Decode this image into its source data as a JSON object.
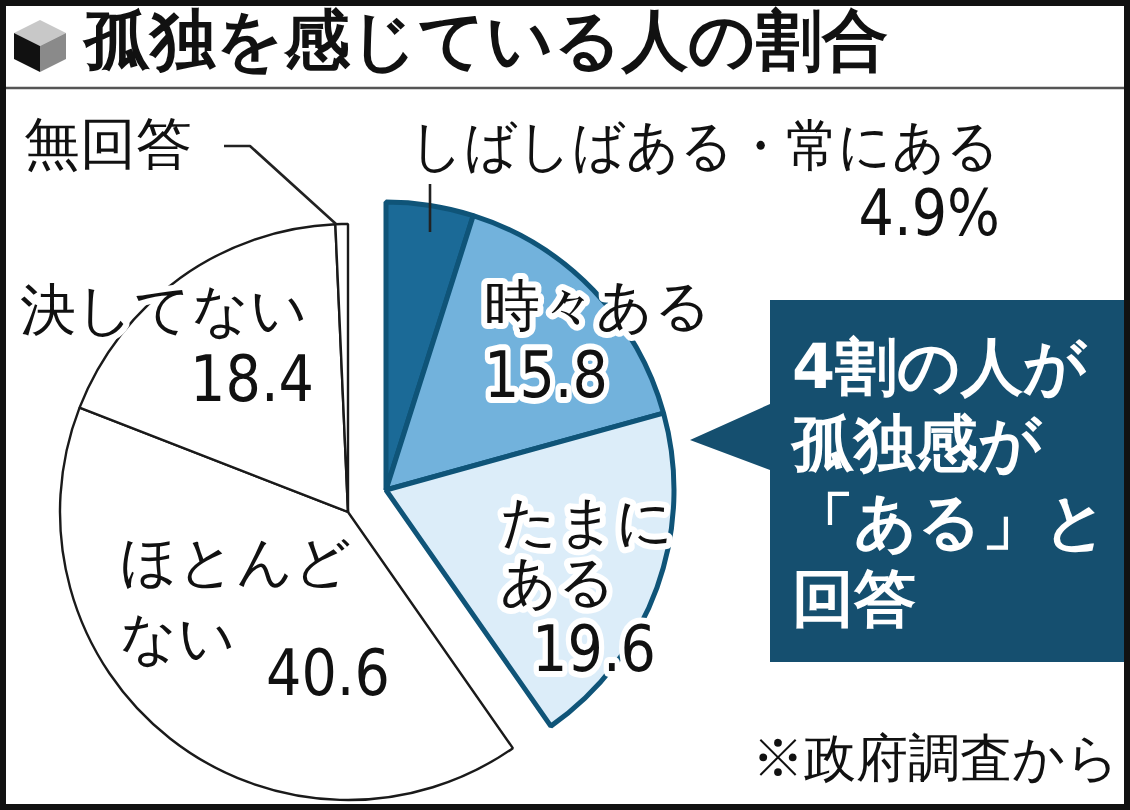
{
  "chart_data": {
    "type": "pie",
    "title": "孤独を感じている人の割合",
    "categories": [
      "しばしばある・常にある",
      "時々ある",
      "たまにある",
      "ほとんどない",
      "決してない",
      "無回答"
    ],
    "values": [
      4.9,
      15.8,
      19.6,
      40.6,
      18.4,
      0.7
    ],
    "colors": [
      "#1b6a97",
      "#72b2dc",
      "#dcedf9",
      "#ffffff",
      "#ffffff",
      "#ffffff"
    ],
    "value_labels": [
      "4.9%",
      "15.8",
      "19.6",
      "40.6",
      "18.4",
      null
    ],
    "annotations": [
      "4割の人が孤独感が「ある」と回答",
      "※政府調査から"
    ]
  }
}
